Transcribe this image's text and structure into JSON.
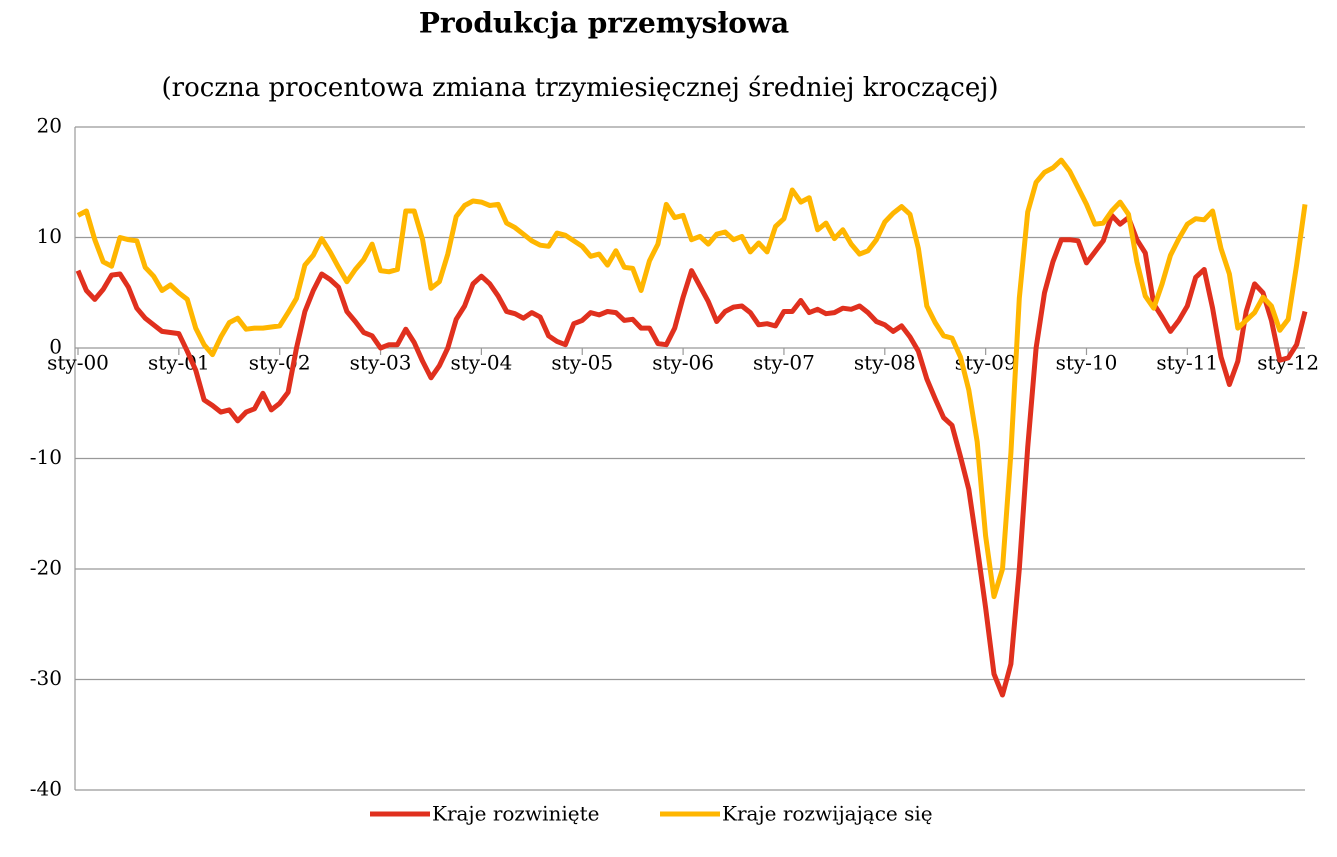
{
  "chart_data": {
    "type": "line",
    "title": "Produkcja przemysłowa",
    "subtitle": "(roczna procentowa zmiana trzymiesięcznej średniej kroczącej)",
    "categories": [
      "sty-00",
      null,
      null,
      null,
      null,
      null,
      null,
      null,
      null,
      null,
      null,
      null,
      "sty-01",
      null,
      null,
      null,
      null,
      null,
      null,
      null,
      null,
      null,
      null,
      null,
      "sty-02",
      null,
      null,
      null,
      null,
      null,
      null,
      null,
      null,
      null,
      null,
      null,
      "sty-03",
      null,
      null,
      null,
      null,
      null,
      null,
      null,
      null,
      null,
      null,
      null,
      "sty-04",
      null,
      null,
      null,
      null,
      null,
      null,
      null,
      null,
      null,
      null,
      null,
      "sty-05",
      null,
      null,
      null,
      null,
      null,
      null,
      null,
      null,
      null,
      null,
      null,
      "sty-06",
      null,
      null,
      null,
      null,
      null,
      null,
      null,
      null,
      null,
      null,
      null,
      "sty-07",
      null,
      null,
      null,
      null,
      null,
      null,
      null,
      null,
      null,
      null,
      null,
      "sty-08",
      null,
      null,
      null,
      null,
      null,
      null,
      null,
      null,
      null,
      null,
      null,
      "sty-09",
      null,
      null,
      null,
      null,
      null,
      null,
      null,
      null,
      null,
      null,
      null,
      "sty-10",
      null,
      null,
      null,
      null,
      null,
      null,
      null,
      null,
      null,
      null,
      null,
      "sty-11",
      null,
      null,
      null,
      null,
      null,
      null,
      null,
      null,
      null,
      null,
      null,
      "sty-12",
      null,
      null
    ],
    "series": [
      {
        "name": "Kraje rozwinięte",
        "color": "#e0301e",
        "values": [
          7,
          5.2,
          4.4,
          5.3,
          6.6,
          6.7,
          5.5,
          3.6,
          2.7,
          2.1,
          1.5,
          1.4,
          1.3,
          -0.3,
          -2,
          -4.7,
          -5.2,
          -5.8,
          -5.6,
          -6.6,
          -5.8,
          -5.5,
          -4.1,
          -5.6,
          -5,
          -4,
          0,
          3.3,
          5.2,
          6.7,
          6.2,
          5.5,
          3.3,
          2.4,
          1.4,
          1.1,
          0,
          0.3,
          0.3,
          1.7,
          0.5,
          -1.2,
          -2.7,
          -1.6,
          0,
          2.6,
          3.8,
          5.8,
          6.5,
          5.8,
          4.7,
          3.3,
          3.1,
          2.7,
          3.2,
          2.8,
          1.1,
          0.6,
          0.3,
          2.2,
          2.5,
          3.2,
          3,
          3.3,
          3.2,
          2.5,
          2.6,
          1.8,
          1.8,
          0.4,
          0.3,
          1.8,
          4.6,
          7,
          5.6,
          4.2,
          2.4,
          3.3,
          3.7,
          3.8,
          3.2,
          2.1,
          2.2,
          2,
          3.3,
          3.3,
          4.3,
          3.2,
          3.5,
          3.1,
          3.2,
          3.6,
          3.5,
          3.8,
          3.2,
          2.4,
          2.1,
          1.5,
          2,
          1,
          -0.3,
          -2.8,
          -4.6,
          -6.3,
          -7,
          -9.8,
          -12.8,
          -18,
          -23.5,
          -29.5,
          -31.4,
          -28.6,
          -20,
          -9,
          0,
          5,
          7.8,
          9.8,
          9.8,
          9.7,
          7.7,
          8.7,
          9.7,
          12,
          11.2,
          11.8,
          9.8,
          8.6,
          4,
          2.8,
          1.5,
          2.5,
          3.8,
          6.4,
          7.1,
          3.6,
          -0.8,
          -3.3,
          -1.2,
          3.3,
          5.8,
          5,
          2.5,
          -1.1,
          -0.9,
          0.3,
          3.3
        ]
      },
      {
        "name": "Kraje rozwijające się",
        "color": "#ffb600",
        "values": [
          12,
          12.4,
          9.8,
          7.8,
          7.4,
          10,
          9.8,
          9.7,
          7.3,
          6.5,
          5.2,
          5.7,
          5,
          4.4,
          1.8,
          0.3,
          -0.6,
          1,
          2.3,
          2.7,
          1.7,
          1.8,
          1.8,
          1.9,
          2,
          3.2,
          4.5,
          7.5,
          8.4,
          9.9,
          8.7,
          7.3,
          6,
          7.1,
          8,
          9.4,
          7,
          6.9,
          7.1,
          12.4,
          12.4,
          9.8,
          5.4,
          6,
          8.5,
          11.9,
          12.9,
          13.3,
          13.2,
          12.9,
          13,
          11.3,
          10.9,
          10.3,
          9.7,
          9.3,
          9.2,
          10.4,
          10.2,
          9.7,
          9.2,
          8.3,
          8.5,
          7.5,
          8.8,
          7.3,
          7.2,
          5.2,
          7.9,
          9.4,
          13,
          11.8,
          12,
          9.8,
          10.1,
          9.4,
          10.3,
          10.5,
          9.8,
          10.1,
          8.7,
          9.5,
          8.7,
          11,
          11.7,
          14.3,
          13.2,
          13.6,
          10.7,
          11.3,
          9.9,
          10.7,
          9.4,
          8.5,
          8.8,
          9.8,
          11.4,
          12.2,
          12.8,
          12.1,
          9,
          3.8,
          2.3,
          1.1,
          0.9,
          -0.8,
          -3.8,
          -8.5,
          -17,
          -22.5,
          -20,
          -9.5,
          4.5,
          12.3,
          15,
          15.9,
          16.3,
          17,
          16,
          14.5,
          13,
          11.2,
          11.3,
          12.4,
          13.2,
          12.1,
          7.8,
          4.7,
          3.6,
          5.8,
          8.4,
          9.9,
          11.2,
          11.7,
          11.6,
          12.4,
          9,
          6.7,
          1.8,
          2.5,
          3.2,
          4.6,
          3.8,
          1.6,
          2.6,
          7.5,
          13
        ]
      }
    ],
    "ylim": [
      -40,
      20
    ],
    "yticks": [
      -40,
      -30,
      -20,
      -10,
      0,
      10,
      20
    ],
    "grid": true,
    "legend": "bottom"
  }
}
